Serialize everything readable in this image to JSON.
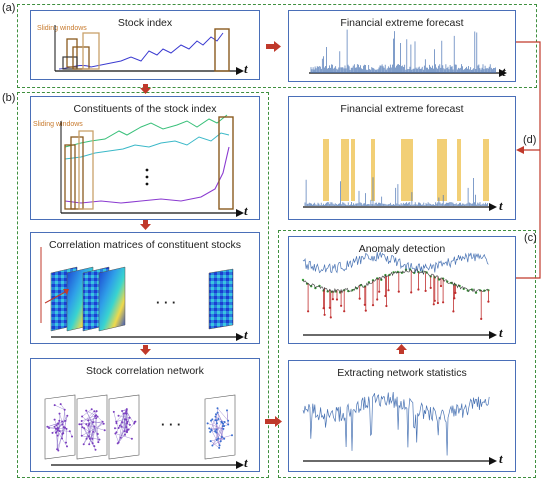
{
  "labels": {
    "a": "(a)",
    "b": "(b)",
    "c": "(c)",
    "d": "(d)"
  },
  "panels": {
    "stock_index": "Stock index",
    "forecast_top": "Financial extreme forecast",
    "constituents": "Constituents of the stock index",
    "forecast_mid": "Financial extreme forecast",
    "correlation": "Correlation matrices of constituent stocks",
    "anomaly": "Anomaly detection",
    "network": "Stock correlation network",
    "extracting": "Extracting network statistics"
  },
  "sliding_windows": "Sliding windows",
  "time_var": "t",
  "ellipsis": "· · ·",
  "colors": {
    "panel_border": "#4a6fb8",
    "dashed_group": "#3f8f3f",
    "arrow": "#c0392b",
    "window_box": "#a0662a",
    "highlight": "#f0c75e",
    "series": "#4a74b4"
  }
}
